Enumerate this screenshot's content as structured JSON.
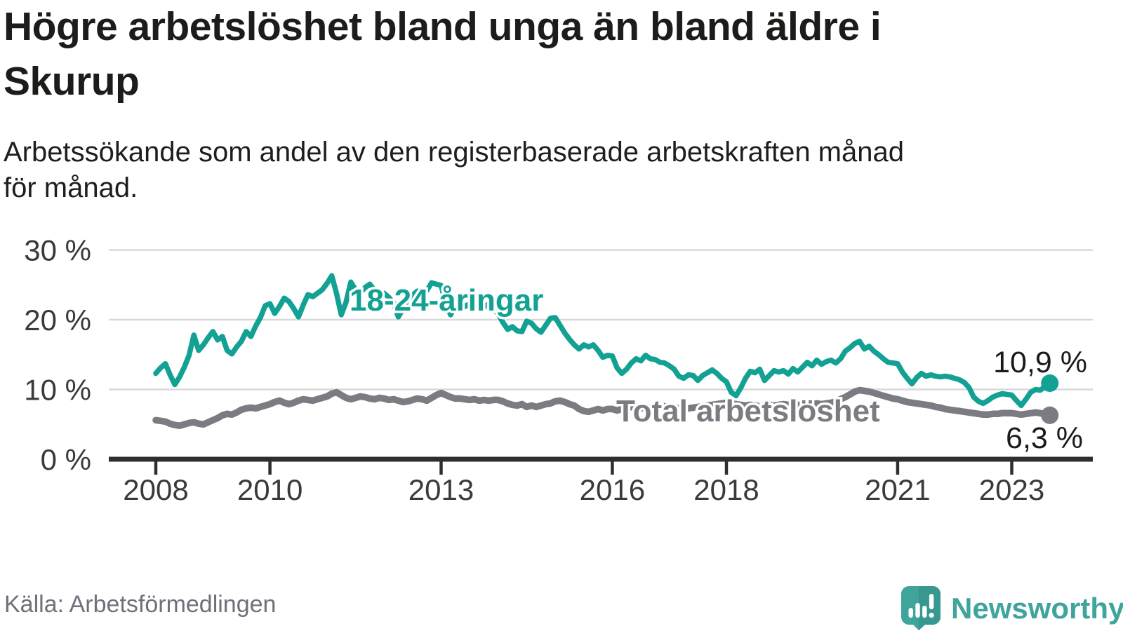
{
  "title": "Högre arbetslöshet bland unga än bland äldre i\nSkurup",
  "subtitle": "Arbetssökande som andel av den registerbaserade arbetskraften månad\nför månad.",
  "source": "Källa: Arbetsförmedlingen",
  "branding": {
    "logo_text": "Newsworthy",
    "logo_icon": "speech-bubble-bar-chart-exclamation"
  },
  "colors": {
    "background": "#ffffff",
    "title_text": "#1c1c1a",
    "grid": "#d9d9d9",
    "axis": "#2e2e2e",
    "tick_text": "#3a3a3a",
    "value_label_text": "#1b1b1b",
    "source_text": "#70707a",
    "brand_teal": "#3fa49c",
    "brand_teal_dark": "#35948c",
    "youth_teal": "#12a193",
    "total_gray": "#7b7b81"
  },
  "chart_data": {
    "type": "line",
    "frequency": "monthly",
    "start_year": 2008,
    "start_month": 1,
    "grid": "horizontal",
    "ylim": [
      0,
      31.5
    ],
    "y_ticks": [
      {
        "value": 0,
        "label": "0 %"
      },
      {
        "value": 10,
        "label": "10 %"
      },
      {
        "value": 20,
        "label": "20 %"
      },
      {
        "value": 30,
        "label": "30 %"
      }
    ],
    "x_ticks": [
      {
        "year": 2008,
        "label": "2008"
      },
      {
        "year": 2010,
        "label": "2010"
      },
      {
        "year": 2013,
        "label": "2013"
      },
      {
        "year": 2016,
        "label": "2016"
      },
      {
        "year": 2018,
        "label": "2018"
      },
      {
        "year": 2021,
        "label": "2021"
      },
      {
        "year": 2023,
        "label": "2023"
      }
    ],
    "series": [
      {
        "name": "18-24-åringar",
        "color": "#12a193",
        "end_label": "10,9 %",
        "values": [
          12.3,
          13.1,
          13.7,
          12.1,
          10.7,
          11.8,
          13.2,
          14.9,
          17.8,
          15.6,
          16.4,
          17.4,
          18.3,
          17.1,
          17.6,
          15.6,
          15.1,
          16.1,
          16.9,
          18.3,
          17.6,
          19.1,
          20.3,
          22.0,
          22.3,
          20.9,
          21.9,
          23.1,
          22.6,
          21.6,
          20.4,
          22.1,
          23.6,
          23.3,
          23.8,
          24.3,
          25.2,
          26.3,
          23.8,
          20.7,
          22.5,
          25.4,
          24.3,
          23.9,
          24.6,
          25.1,
          24.2,
          23.6,
          23.8,
          23.2,
          22.4,
          20.4,
          21.6,
          23.0,
          23.5,
          24.1,
          23.6,
          24.2,
          25.3,
          25.1,
          24.9,
          22.3,
          20.7,
          22.0,
          22.5,
          21.9,
          22.3,
          22.7,
          22.2,
          21.8,
          22.3,
          21.6,
          20.8,
          19.6,
          18.6,
          19.0,
          18.4,
          18.3,
          19.8,
          19.5,
          18.7,
          18.2,
          19.2,
          20.2,
          20.3,
          19.2,
          18.1,
          17.2,
          16.4,
          15.8,
          16.4,
          16.1,
          16.4,
          15.6,
          14.6,
          14.9,
          14.8,
          13.1,
          12.3,
          12.9,
          13.8,
          14.4,
          14.1,
          14.9,
          14.4,
          14.3,
          13.9,
          13.8,
          13.4,
          12.9,
          11.9,
          11.6,
          12.1,
          12.0,
          11.3,
          12.0,
          12.4,
          12.8,
          12.3,
          11.6,
          11.1,
          9.6,
          9.1,
          10.2,
          11.6,
          12.6,
          12.4,
          12.9,
          11.3,
          12.0,
          12.7,
          12.5,
          12.7,
          12.2,
          13.0,
          12.5,
          13.2,
          13.9,
          13.4,
          14.2,
          13.6,
          14.0,
          14.2,
          13.8,
          14.4,
          15.5,
          16.0,
          16.6,
          16.9,
          15.8,
          16.2,
          15.5,
          15.0,
          14.4,
          13.9,
          13.8,
          13.7,
          12.5,
          11.6,
          10.8,
          11.7,
          12.3,
          11.9,
          12.1,
          11.9,
          11.8,
          11.9,
          11.8,
          11.6,
          11.4,
          11.0,
          10.3,
          8.9,
          8.3,
          8.0,
          8.4,
          8.9,
          9.2,
          9.4,
          9.3,
          9.2,
          8.4,
          7.7,
          8.6,
          9.6,
          10.0,
          9.9,
          10.4,
          10.9
        ]
      },
      {
        "name": "Total arbetslöshet",
        "color": "#7b7b81",
        "end_label": "6,3 %",
        "values": [
          5.6,
          5.5,
          5.4,
          5.1,
          4.9,
          4.8,
          5.0,
          5.2,
          5.3,
          5.1,
          5.0,
          5.3,
          5.6,
          5.9,
          6.3,
          6.5,
          6.4,
          6.7,
          7.1,
          7.3,
          7.4,
          7.3,
          7.5,
          7.7,
          7.9,
          8.2,
          8.4,
          8.1,
          7.9,
          8.1,
          8.4,
          8.6,
          8.5,
          8.4,
          8.6,
          8.8,
          9.0,
          9.4,
          9.6,
          9.2,
          8.8,
          8.6,
          8.8,
          9.0,
          8.9,
          8.7,
          8.6,
          8.8,
          8.7,
          8.5,
          8.6,
          8.4,
          8.2,
          8.3,
          8.5,
          8.7,
          8.6,
          8.4,
          8.8,
          9.2,
          9.5,
          9.2,
          8.9,
          8.7,
          8.7,
          8.6,
          8.5,
          8.6,
          8.4,
          8.5,
          8.4,
          8.5,
          8.5,
          8.3,
          8.0,
          7.8,
          7.7,
          7.9,
          7.5,
          7.7,
          7.5,
          7.7,
          7.9,
          8.0,
          8.3,
          8.4,
          8.2,
          7.9,
          7.7,
          7.2,
          6.9,
          6.8,
          7.0,
          7.2,
          7.0,
          7.2,
          7.2,
          7.0,
          7.2,
          7.3,
          7.5,
          7.4,
          7.3,
          7.5,
          7.4,
          7.6,
          7.5,
          7.6,
          7.5,
          7.4,
          7.3,
          7.2,
          7.3,
          7.4,
          7.5,
          7.6,
          7.7,
          7.8,
          7.9,
          8.0,
          8.1,
          8.0,
          7.9,
          7.8,
          7.7,
          7.8,
          7.7,
          7.6,
          7.7,
          7.8,
          7.7,
          7.8,
          7.9,
          7.8,
          7.9,
          7.8,
          7.7,
          7.8,
          7.9,
          8.0,
          7.9,
          8.0,
          8.1,
          8.3,
          8.6,
          8.9,
          9.3,
          9.7,
          9.9,
          9.8,
          9.7,
          9.5,
          9.3,
          9.1,
          8.9,
          8.7,
          8.6,
          8.4,
          8.2,
          8.1,
          8.0,
          7.9,
          7.8,
          7.7,
          7.5,
          7.4,
          7.2,
          7.1,
          7.0,
          6.9,
          6.8,
          6.7,
          6.6,
          6.5,
          6.4,
          6.4,
          6.5,
          6.5,
          6.6,
          6.6,
          6.6,
          6.5,
          6.4,
          6.5,
          6.6,
          6.7,
          6.6,
          6.4,
          6.3
        ]
      }
    ]
  }
}
